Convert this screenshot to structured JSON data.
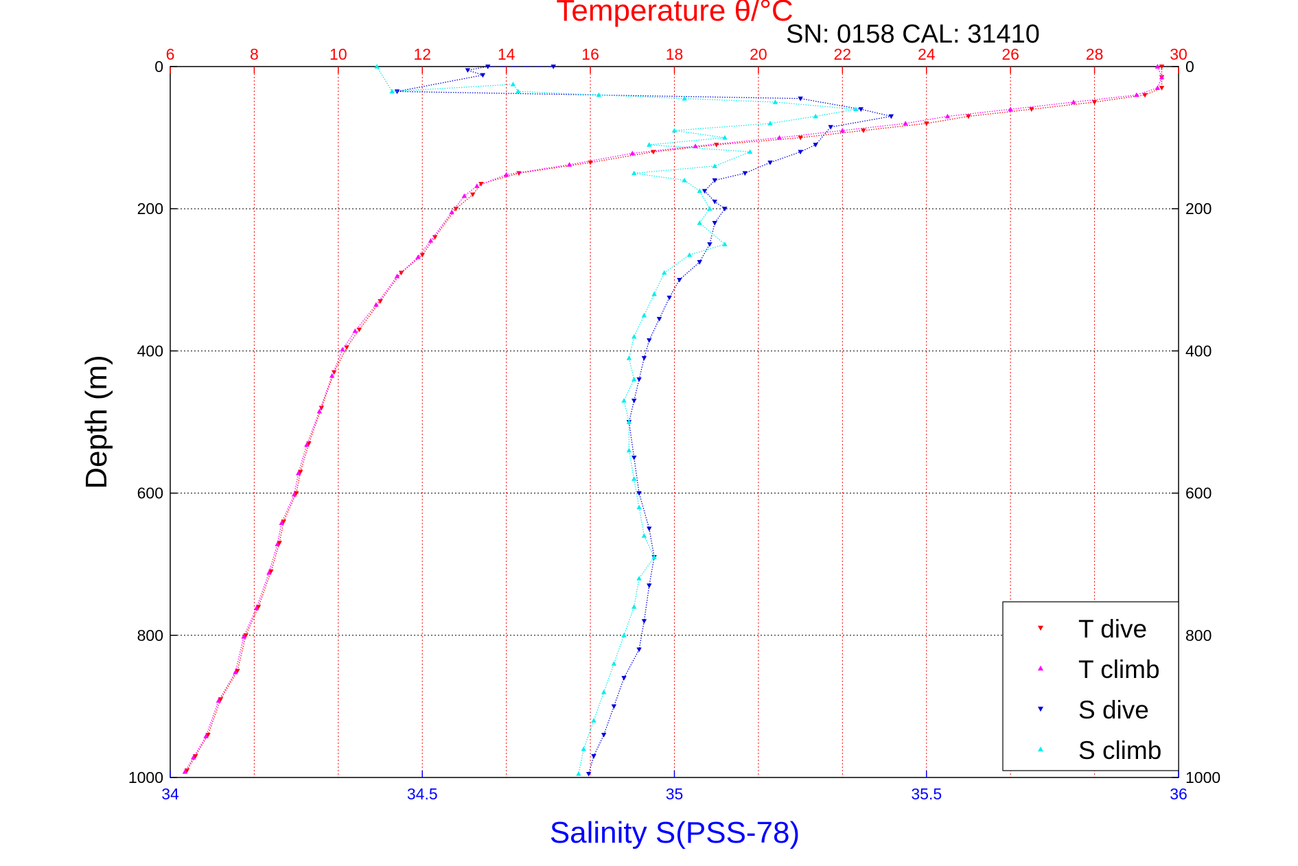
{
  "chart_data": {
    "type": "scatter",
    "title": "Temperature θ/°C",
    "annotation": "SN: 0158  CAL: 31410",
    "xlabel": "Salinity S(PSS-78)",
    "ylabel": "Depth (m)",
    "x_axis": {
      "min": 34,
      "max": 36,
      "ticks": [
        "34",
        "34.5",
        "35",
        "35.5",
        "36"
      ],
      "tick_values": [
        34,
        34.5,
        35,
        35.5,
        36
      ],
      "color": "#0000ff"
    },
    "x2_axis": {
      "min": 6,
      "max": 30,
      "ticks": [
        "6",
        "8",
        "10",
        "12",
        "14",
        "16",
        "18",
        "20",
        "22",
        "24",
        "26",
        "28",
        "30"
      ],
      "tick_values": [
        6,
        8,
        10,
        12,
        14,
        16,
        18,
        20,
        22,
        24,
        26,
        28,
        30
      ],
      "color": "#ff0000"
    },
    "y_axis": {
      "min": 0,
      "max": 1000,
      "reversed": true,
      "ticks": [
        "0",
        "200",
        "400",
        "600",
        "800",
        "1000"
      ],
      "tick_values": [
        0,
        200,
        400,
        600,
        800,
        1000
      ]
    },
    "grid": true,
    "legend": {
      "placement": "bottom-right",
      "entries": [
        "T dive",
        "T climb",
        "S dive",
        "S climb"
      ]
    },
    "series": [
      {
        "name": "T dive",
        "axis": "temperature",
        "color": "#ff0000",
        "marker": "triangle-down",
        "points": [
          [
            29.6,
            0
          ],
          [
            29.6,
            15
          ],
          [
            29.6,
            30
          ],
          [
            29.2,
            40
          ],
          [
            28.0,
            50
          ],
          [
            26.5,
            60
          ],
          [
            25.0,
            70
          ],
          [
            24.0,
            80
          ],
          [
            22.5,
            90
          ],
          [
            21.0,
            100
          ],
          [
            19.0,
            110
          ],
          [
            17.5,
            120
          ],
          [
            16.0,
            135
          ],
          [
            14.3,
            150
          ],
          [
            13.4,
            165
          ],
          [
            13.2,
            180
          ],
          [
            12.8,
            200
          ],
          [
            12.3,
            240
          ],
          [
            12.0,
            265
          ],
          [
            11.5,
            290
          ],
          [
            11.0,
            330
          ],
          [
            10.5,
            370
          ],
          [
            10.2,
            395
          ],
          [
            9.9,
            430
          ],
          [
            9.6,
            480
          ],
          [
            9.3,
            530
          ],
          [
            9.1,
            570
          ],
          [
            9.0,
            600
          ],
          [
            8.7,
            640
          ],
          [
            8.6,
            670
          ],
          [
            8.4,
            710
          ],
          [
            8.1,
            760
          ],
          [
            7.8,
            800
          ],
          [
            7.6,
            850
          ],
          [
            7.2,
            890
          ],
          [
            6.9,
            940
          ],
          [
            6.6,
            970
          ],
          [
            6.4,
            990
          ]
        ]
      },
      {
        "name": "T climb",
        "axis": "temperature",
        "color": "#ff00ff",
        "marker": "triangle-up",
        "points": [
          [
            29.5,
            0
          ],
          [
            29.6,
            15
          ],
          [
            29.5,
            30
          ],
          [
            29.0,
            40
          ],
          [
            27.5,
            50
          ],
          [
            26.0,
            60
          ],
          [
            24.5,
            70
          ],
          [
            23.5,
            80
          ],
          [
            22.0,
            90
          ],
          [
            20.5,
            100
          ],
          [
            18.5,
            112
          ],
          [
            17.0,
            122
          ],
          [
            15.5,
            138
          ],
          [
            14.0,
            152
          ],
          [
            13.3,
            168
          ],
          [
            13.0,
            182
          ],
          [
            12.7,
            205
          ],
          [
            12.2,
            245
          ],
          [
            11.9,
            268
          ],
          [
            11.4,
            295
          ],
          [
            10.9,
            335
          ],
          [
            10.4,
            372
          ],
          [
            10.1,
            398
          ],
          [
            9.85,
            435
          ],
          [
            9.55,
            485
          ],
          [
            9.25,
            532
          ],
          [
            9.05,
            572
          ],
          [
            8.95,
            602
          ],
          [
            8.65,
            642
          ],
          [
            8.55,
            672
          ],
          [
            8.35,
            712
          ],
          [
            8.05,
            762
          ],
          [
            7.75,
            802
          ],
          [
            7.55,
            852
          ],
          [
            7.15,
            892
          ],
          [
            6.85,
            942
          ],
          [
            6.55,
            972
          ],
          [
            6.35,
            992
          ]
        ]
      },
      {
        "name": "S dive",
        "axis": "salinity",
        "color": "#0000dd",
        "marker": "triangle-down",
        "points": [
          [
            34.76,
            0
          ],
          [
            34.63,
            0
          ],
          [
            34.59,
            5
          ],
          [
            34.62,
            12
          ],
          [
            34.45,
            35
          ],
          [
            35.25,
            45
          ],
          [
            35.37,
            60
          ],
          [
            35.43,
            70
          ],
          [
            35.31,
            85
          ],
          [
            35.28,
            110
          ],
          [
            35.25,
            120
          ],
          [
            35.19,
            135
          ],
          [
            35.14,
            150
          ],
          [
            35.08,
            160
          ],
          [
            35.06,
            175
          ],
          [
            35.08,
            190
          ],
          [
            35.1,
            200
          ],
          [
            35.08,
            220
          ],
          [
            35.07,
            250
          ],
          [
            35.05,
            275
          ],
          [
            35.01,
            300
          ],
          [
            34.99,
            325
          ],
          [
            34.97,
            355
          ],
          [
            34.95,
            385
          ],
          [
            34.94,
            410
          ],
          [
            34.93,
            440
          ],
          [
            34.92,
            470
          ],
          [
            34.91,
            500
          ],
          [
            34.92,
            550
          ],
          [
            34.93,
            600
          ],
          [
            34.95,
            650
          ],
          [
            34.96,
            690
          ],
          [
            34.95,
            730
          ],
          [
            34.94,
            780
          ],
          [
            34.93,
            820
          ],
          [
            34.9,
            860
          ],
          [
            34.88,
            900
          ],
          [
            34.86,
            940
          ],
          [
            34.84,
            970
          ],
          [
            34.83,
            995
          ]
        ]
      },
      {
        "name": "S climb",
        "axis": "salinity",
        "color": "#00eeee",
        "marker": "triangle-up",
        "points": [
          [
            34.41,
            0
          ],
          [
            34.44,
            35
          ],
          [
            34.68,
            25
          ],
          [
            34.69,
            35
          ],
          [
            34.85,
            40
          ],
          [
            35.02,
            45
          ],
          [
            35.2,
            50
          ],
          [
            35.36,
            60
          ],
          [
            35.28,
            70
          ],
          [
            35.19,
            80
          ],
          [
            35.0,
            90
          ],
          [
            35.1,
            100
          ],
          [
            34.95,
            110
          ],
          [
            35.15,
            120
          ],
          [
            35.08,
            140
          ],
          [
            34.92,
            150
          ],
          [
            35.02,
            160
          ],
          [
            35.05,
            175
          ],
          [
            35.07,
            200
          ],
          [
            35.05,
            220
          ],
          [
            35.1,
            250
          ],
          [
            35.03,
            265
          ],
          [
            34.98,
            290
          ],
          [
            34.96,
            320
          ],
          [
            34.94,
            350
          ],
          [
            34.92,
            380
          ],
          [
            34.91,
            410
          ],
          [
            34.92,
            440
          ],
          [
            34.9,
            470
          ],
          [
            34.91,
            500
          ],
          [
            34.91,
            540
          ],
          [
            34.92,
            580
          ],
          [
            34.93,
            620
          ],
          [
            34.94,
            660
          ],
          [
            34.96,
            690
          ],
          [
            34.93,
            720
          ],
          [
            34.92,
            760
          ],
          [
            34.9,
            800
          ],
          [
            34.88,
            840
          ],
          [
            34.86,
            880
          ],
          [
            34.84,
            920
          ],
          [
            34.82,
            960
          ],
          [
            34.81,
            995
          ]
        ]
      }
    ]
  }
}
